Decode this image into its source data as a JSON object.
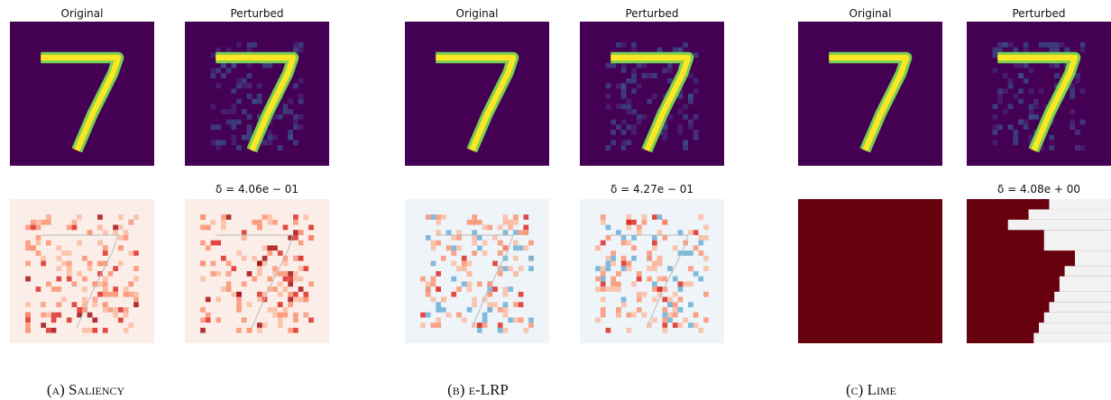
{
  "panels": [
    {
      "original_title": "Original",
      "perturbed_title": "Perturbed",
      "delta": "δ = 4.06e − 01",
      "caption": "(a) Saliency"
    },
    {
      "original_title": "Original",
      "perturbed_title": "Perturbed",
      "delta": "δ = 4.27e − 01",
      "caption": "(b) e-LRP"
    },
    {
      "original_title": "Original",
      "perturbed_title": "Perturbed",
      "delta": "δ = 4.08e + 00",
      "caption": "(c) Lime"
    }
  ]
}
